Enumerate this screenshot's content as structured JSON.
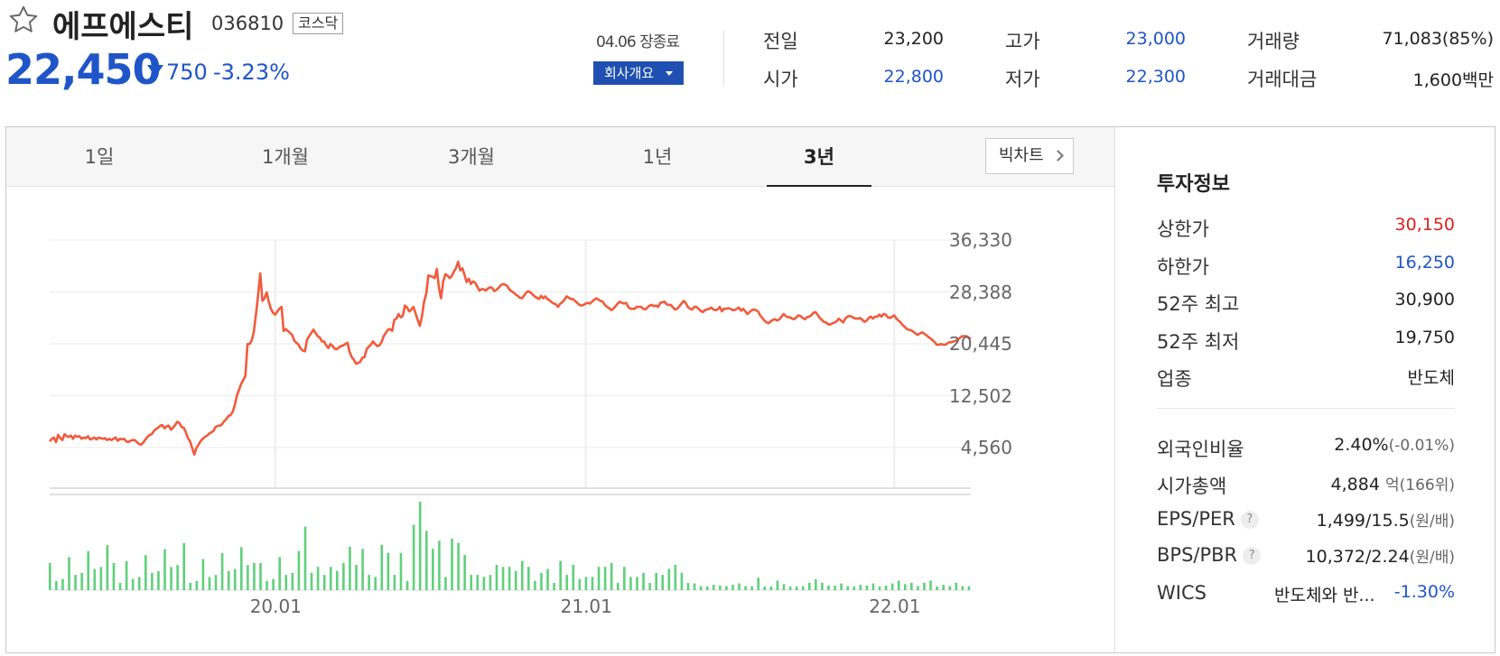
{
  "header": {
    "name": "에프에스티",
    "code": "036810",
    "market": "코스닥",
    "price": "22,450",
    "change": "750",
    "change_pct": "-3.23%",
    "date_status": "04.06 장종료",
    "company_btn": "회사개요"
  },
  "stats": [
    {
      "label": "전일",
      "value": "23,200",
      "color": "#222222"
    },
    {
      "label": "고가",
      "value": "23,000",
      "color": "#1f55c8"
    },
    {
      "label": "거래량",
      "value": "71,083(85%)",
      "color": "#222222"
    },
    {
      "label": "시가",
      "value": "22,800",
      "color": "#1f55c8"
    },
    {
      "label": "저가",
      "value": "22,300",
      "color": "#1f55c8"
    },
    {
      "label": "거래대금",
      "value": "1,600백만",
      "color": "#222222"
    }
  ],
  "tabs": [
    "1일",
    "1개월",
    "3개월",
    "1년",
    "3년"
  ],
  "active_tab": "3년",
  "big_chart_btn": "빅차트",
  "info": {
    "title": "투자정보",
    "rows1": [
      {
        "label": "상한가",
        "value": "30,150",
        "color": "#e0201c"
      },
      {
        "label": "하한가",
        "value": "16,250",
        "color": "#1f55c8"
      },
      {
        "label": "52주 최고",
        "value": "30,900",
        "color": "#222222"
      },
      {
        "label": "52주 최저",
        "value": "19,750",
        "color": "#222222"
      },
      {
        "label": "업종",
        "value": "반도체",
        "color": "#222222"
      }
    ],
    "foreign_label": "외국인비율",
    "foreign_value": "2.40%",
    "foreign_change": "(-0.01%)",
    "mcap_label": "시가총액",
    "mcap_value": "4,884",
    "mcap_unit": "억",
    "mcap_rank": "(166위)",
    "eps_label": "EPS/PER",
    "eps_value": "1,499/15.5",
    "eps_unit": "(원/배)",
    "bps_label": "BPS/PBR",
    "bps_value": "10,372/2.24",
    "bps_unit": "(원/배)",
    "wics_label": "WICS",
    "wics_value": "반도체와 반...",
    "wics_pct": "-1.30%"
  },
  "chart_data": {
    "type": "line",
    "yticks": [
      "36,330",
      "28,388",
      "20,445",
      "12,502",
      "4,560"
    ],
    "ylim": [
      4560,
      36330
    ],
    "xticks": [
      "20.01",
      "21.01",
      "22.01"
    ],
    "price_series": [
      5500,
      5900,
      6100,
      5400,
      6500,
      6000,
      5700,
      6600,
      6300,
      6200,
      6400,
      5900,
      6400,
      6200,
      6300,
      5900,
      6100,
      6000,
      6300,
      5800,
      5900,
      6100,
      5800,
      6100,
      6000,
      5900,
      6000,
      5700,
      5900,
      5700,
      5900,
      6100,
      5600,
      5900,
      5800,
      5900,
      5500,
      5400,
      5600,
      5700,
      5700,
      5400,
      5100,
      5000,
      5300,
      5800,
      6200,
      6500,
      6600,
      7100,
      7400,
      7600,
      7900,
      8000,
      7500,
      7800,
      7900,
      7300,
      7600,
      8000,
      8500,
      8300,
      7700,
      7600,
      6900,
      6000,
      5500,
      4500,
      3500,
      4500,
      5000,
      5600,
      5900,
      6200,
      6400,
      6700,
      6900,
      7100,
      7700,
      7900,
      7900,
      8100,
      8600,
      8900,
      9400,
      9500,
      10000,
      11000,
      12500,
      13400,
      14300,
      14900,
      15500,
      20400,
      20400,
      21000,
      22300,
      25000,
      28000,
      31200,
      27000,
      27400,
      28300,
      26900,
      25800,
      25200,
      24900,
      25400,
      25800,
      26100,
      22400,
      22700,
      22400,
      22100,
      21800,
      20900,
      20600,
      20300,
      19700,
      19400,
      19300,
      21100,
      21600,
      22100,
      22600,
      22100,
      21600,
      21400,
      20800,
      20800,
      20200,
      19800,
      20400,
      20100,
      19700,
      19600,
      19900,
      20100,
      20200,
      20400,
      20600,
      19200,
      18400,
      18000,
      17400,
      17500,
      17700,
      18300,
      18400,
      19600,
      20000,
      20300,
      20800,
      20400,
      20100,
      20200,
      20700,
      21600,
      22100,
      22600,
      22700,
      22400,
      24100,
      24300,
      25000,
      24500,
      24700,
      26300,
      26000,
      25400,
      25700,
      26100,
      25100,
      24100,
      23200,
      24600,
      26900,
      28100,
      30900,
      30800,
      30700,
      30500,
      31900,
      29000,
      27400,
      30000,
      31100,
      30900,
      30500,
      30800,
      31500,
      32000,
      33000,
      31700,
      32000,
      31000,
      29900,
      30400,
      29600,
      30000,
      29800,
      29200,
      28600,
      28800,
      28800,
      28600,
      28900,
      29100,
      29000,
      28500,
      28700,
      29000,
      29400,
      29600,
      29500,
      29300,
      28800,
      28500,
      28300,
      28000,
      27800,
      27500,
      27400,
      27800,
      28300,
      28500,
      28300,
      28000,
      27700,
      27500,
      27300,
      27800,
      27400,
      27700,
      27300,
      27100,
      26800,
      26600,
      26500,
      26100,
      26600,
      26800,
      27200,
      27700,
      27500,
      27300,
      27300,
      27000,
      26700,
      26400,
      26300,
      26400,
      26600,
      26700,
      26600,
      26900,
      27200,
      27400,
      27200,
      27000,
      26900,
      26400,
      26100,
      25900,
      25600,
      25800,
      26200,
      26600,
      26900,
      26700,
      26600,
      26700,
      26100,
      25800,
      25800,
      25800,
      26100,
      26100,
      26100,
      25800,
      25700,
      26000,
      26300,
      26400,
      26200,
      26300,
      26100,
      26700,
      26800,
      26900,
      26500,
      26400,
      26400,
      26000,
      25700,
      25800,
      26200,
      26600,
      27000,
      26700,
      26100,
      25800,
      25700,
      26100,
      26100,
      25800,
      25500,
      25300,
      25600,
      25700,
      25800,
      26000,
      25700,
      25600,
      25700,
      26100,
      25400,
      25800,
      25800,
      25900,
      25800,
      25600,
      25600,
      25800,
      26000,
      25500,
      25800,
      25400,
      25000,
      25300,
      25600,
      25700,
      25600,
      25400,
      24800,
      24400,
      24000,
      23700,
      23600,
      23900,
      24100,
      24200,
      24000,
      24200,
      24600,
      25000,
      24700,
      24500,
      24500,
      24300,
      24200,
      24500,
      24800,
      24700,
      24400,
      24200,
      24500,
      24600,
      24800,
      25200,
      25300,
      24900,
      24400,
      24100,
      23800,
      23700,
      23400,
      23400,
      23600,
      23700,
      23900,
      24300,
      24000,
      23700,
      24300,
      24600,
      24700,
      24600,
      24400,
      24300,
      24300,
      24400,
      24100,
      23800,
      24000,
      24400,
      24600,
      24300,
      24600,
      24600,
      24900,
      24600,
      25000,
      24900,
      24500,
      24400,
      24600,
      24800,
      24300,
      24000,
      23700,
      23300,
      23000,
      22700,
      22600,
      22500,
      22300,
      22000,
      21800,
      22000,
      22200,
      22000,
      21800,
      21500,
      21300,
      21000,
      20700,
      20300,
      20300,
      20400,
      20300,
      20300,
      20500,
      20700,
      20700,
      20800,
      20900,
      21100,
      21400,
      21600,
      21600,
      21600,
      21400,
      21200
    ]
  }
}
